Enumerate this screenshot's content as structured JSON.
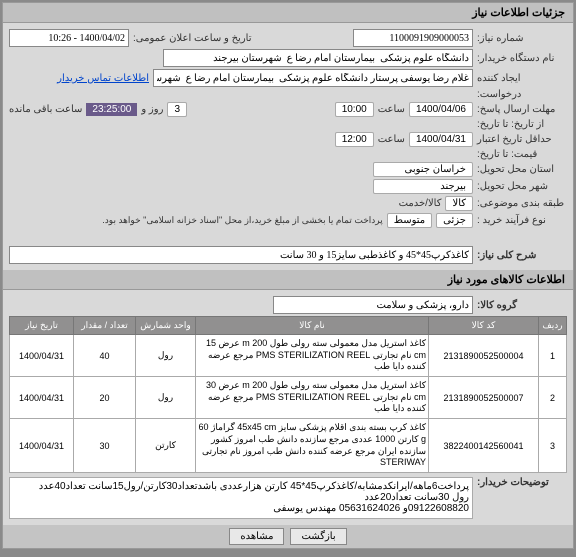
{
  "sections": {
    "need_info": "جزئیات اطلاعات نیاز",
    "items_info": "اطلاعات کالاهای مورد نیاز"
  },
  "labels": {
    "need_no": "شماره نیاز:",
    "public_date": "تاریخ و ساعت اعلان عمومی:",
    "buyer_name": "نام دستگاه خریدار:",
    "creator": "ایجاد کننده",
    "buyer_contact": "اطلاعات تماس خریدار",
    "deadline": "مهلت ارسال پاسخ:",
    "from_to": "از تاریخ:   تا تاریخ:",
    "hour": "ساعت",
    "day_and": "روز و",
    "time_left": "ساعت باقی مانده",
    "min_valid": "حداقل تاریخ اعتبار",
    "price_to": "قیمت:  تا تاریخ:",
    "delivery_state": "استان محل تحویل:",
    "delivery_city": "شهر محل تحویل:",
    "grouping": "طبقه بندی موضوعی:",
    "kala_service": "کالا/خدمت",
    "kala": "کالا",
    "process_type": "نوع فرآیند خرید :",
    "medium": "متوسط",
    "partial": "جزئی",
    "note": "پرداخت تمام یا بخشی از مبلغ خرید،از محل \"اسناد خزانه اسلامی\" خواهد بود.",
    "need_desc": "شرح کلی نیاز:",
    "item_group": "گروه کالا:",
    "buyer_notes": "توضیحات خریدار:"
  },
  "values": {
    "need_no": "1100091909000053",
    "public_date": "1400/04/02 - 10:26",
    "buyer_name": "دانشگاه علوم پزشکی  بیمارستان امام رضا ع  شهرستان بیرجند",
    "creator": "غلام رضا یوسفی پرستار دانشگاه علوم پزشکی  بیمارستان امام رضا ع  شهرس",
    "deadline_date": "1400/04/06",
    "deadline_hour": "10:00",
    "days": "3",
    "countdown": "23:25:00",
    "valid_date": "1400/04/31",
    "valid_hour": "12:00",
    "state": "خراسان جنوبی",
    "city": "بیرجند",
    "need_desc": "کاغذکرپ45*45 و کاغذطبی سایز15 و 30 سانت",
    "item_group": "دارو، پزشکی و سلامت",
    "buyer_notes": "پرداخت6ماهه/ایرانکدمشابه/کاغذکرپ45*45 کارتن هزارعددی باشدتعداد30کارتن/رول15سانت تعداد40عدد\nرول 30سانت تعداد20عدد\n09122608820و 05631624026 مهندس یوسفی"
  },
  "table": {
    "headers": [
      "ردیف",
      "کد کالا",
      "نام کالا",
      "واحد شمارش",
      "تعداد / مقدار",
      "تاریخ نیاز"
    ],
    "rows": [
      {
        "n": "1",
        "code": "2131890052500004",
        "desc": "کاغذ استریل مدل معمولی سته رولی طول 200 m عرض 15 cm نام تجارتی PMS STERILIZATION REEL مرجع عرضه کننده دایا طب",
        "unit": "رول",
        "qty": "40",
        "date": "1400/04/31"
      },
      {
        "n": "2",
        "code": "2131890052500007",
        "desc": "کاغذ استریل مدل معمولی سته رولی طول 200 m عرض 30 cm نام تجارتی PMS STERILIZATION REEL مرجع عرضه کننده دایا طب",
        "unit": "رول",
        "qty": "20",
        "date": "1400/04/31"
      },
      {
        "n": "3",
        "code": "3822400142560041",
        "desc": "کاغذ کرپ بسته بندی اقلام پزشکی سایز 45x45 cm گراماژ 60 g کارتن 1000 عددی مرجع سازنده دانش طب امروز کشور سازنده ایران مرجع عرضه کننده دانش طب امروز نام تجارتی STERIWAY",
        "unit": "کارتن",
        "qty": "30",
        "date": "1400/04/31"
      }
    ]
  },
  "buttons": {
    "view": "مشاهده",
    "close": "بازگشت"
  }
}
